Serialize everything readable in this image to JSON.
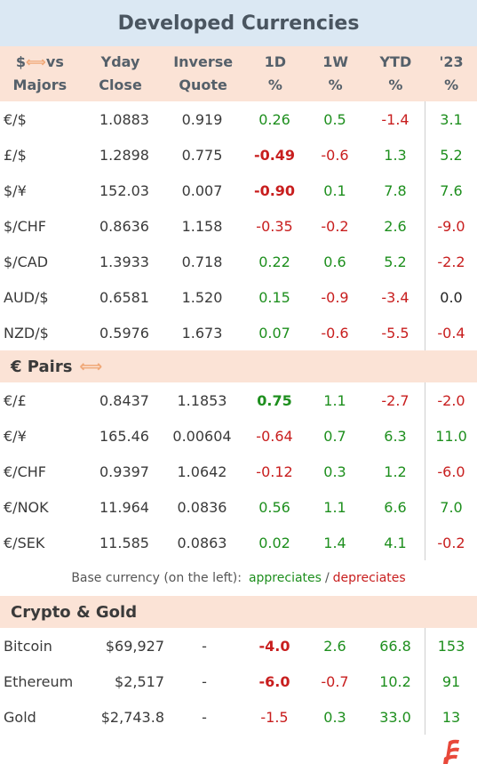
{
  "title": "Developed Currencies",
  "header": {
    "col0_line1": "$",
    "col0_arrow": "⟺",
    "col0_vs": "vs",
    "col0_line2": "Majors",
    "col1_line1": "Yday",
    "col1_line2": "Close",
    "col2_line1": "Inverse",
    "col2_line2": "Quote",
    "col3_line1": "1D",
    "col3_line2": "%",
    "col4_line1": "1W",
    "col4_line2": "%",
    "col5_line1": "YTD",
    "col5_line2": "%",
    "col6_line1": "'23",
    "col6_line2": "%"
  },
  "majors": [
    {
      "pair": "€/$",
      "close": "1.0883",
      "inverse": "0.919",
      "d1": "0.26",
      "w1": "0.5",
      "ytd": "-1.4",
      "y23": "3.1"
    },
    {
      "pair": "£/$",
      "close": "1.2898",
      "inverse": "0.775",
      "d1": "-0.49",
      "w1": "-0.6",
      "ytd": "1.3",
      "y23": "5.2"
    },
    {
      "pair": "$/¥",
      "close": "152.03",
      "inverse": "0.007",
      "d1": "-0.90",
      "w1": "0.1",
      "ytd": "7.8",
      "y23": "7.6"
    },
    {
      "pair": "$/CHF",
      "close": "0.8636",
      "inverse": "1.158",
      "d1": "-0.35",
      "w1": "-0.2",
      "ytd": "2.6",
      "y23": "-9.0"
    },
    {
      "pair": "$/CAD",
      "close": "1.3933",
      "inverse": "0.718",
      "d1": "0.22",
      "w1": "0.6",
      "ytd": "5.2",
      "y23": "-2.2"
    },
    {
      "pair": "AUD/$",
      "close": "0.6581",
      "inverse": "1.520",
      "d1": "0.15",
      "w1": "-0.9",
      "ytd": "-3.4",
      "y23": "0.0"
    },
    {
      "pair": "NZD/$",
      "close": "0.5976",
      "inverse": "1.673",
      "d1": "0.07",
      "w1": "-0.6",
      "ytd": "-5.5",
      "y23": "-0.4"
    }
  ],
  "euro_section": {
    "label": "€ Pairs",
    "arrow": "⟺"
  },
  "euro_pairs": [
    {
      "pair": "€/£",
      "close": "0.8437",
      "inverse": "1.1853",
      "d1": "0.75",
      "w1": "1.1",
      "ytd": "-2.7",
      "y23": "-2.0"
    },
    {
      "pair": "€/¥",
      "close": "165.46",
      "inverse": "0.00604",
      "d1": "-0.64",
      "w1": "0.7",
      "ytd": "6.3",
      "y23": "11.0"
    },
    {
      "pair": "€/CHF",
      "close": "0.9397",
      "inverse": "1.0642",
      "d1": "-0.12",
      "w1": "0.3",
      "ytd": "1.2",
      "y23": "-6.0"
    },
    {
      "pair": "€/NOK",
      "close": "11.964",
      "inverse": "0.0836",
      "d1": "0.56",
      "w1": "1.1",
      "ytd": "6.6",
      "y23": "7.0"
    },
    {
      "pair": "€/SEK",
      "close": "11.585",
      "inverse": "0.0863",
      "d1": "0.02",
      "w1": "1.4",
      "ytd": "4.1",
      "y23": "-0.2"
    }
  ],
  "note": {
    "prefix": "Base currency (on the left):",
    "appreciates": "appreciates",
    "slash": "/",
    "depreciates": "depreciates"
  },
  "crypto_section": {
    "label": "Crypto & Gold"
  },
  "crypto": [
    {
      "pair": "Bitcoin",
      "close": "$69,927",
      "inverse": "-",
      "d1": "-4.0",
      "w1": "2.6",
      "ytd": "66.8",
      "y23": "153"
    },
    {
      "pair": "Ethereum",
      "close": "$2,517",
      "inverse": "-",
      "d1": "-6.0",
      "w1": "-0.7",
      "ytd": "10.2",
      "y23": "91"
    },
    {
      "pair": "Gold",
      "close": "$2,743.8",
      "inverse": "-",
      "d1": "-1.5",
      "w1": "0.3",
      "ytd": "33.0",
      "y23": "13"
    }
  ],
  "colors": {
    "positive": "#1e8f1e",
    "negative": "#c81e1e",
    "title_bg": "#dbe8f3",
    "header_bg": "#fbe3d6"
  },
  "bold_cells": [
    "majors.1.d1",
    "majors.2.d1",
    "euro_pairs.0.d1",
    "crypto.0.d1",
    "crypto.1.d1"
  ]
}
